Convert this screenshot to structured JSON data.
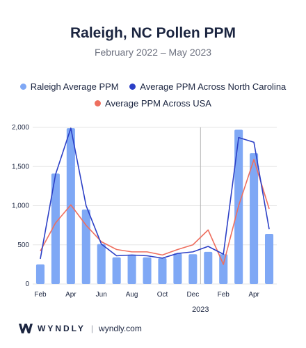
{
  "colors": {
    "bar": "#7fa8f5",
    "nc_line": "#2b3fc6",
    "usa_line": "#ee6f5f",
    "grid": "#e6e6e6",
    "divider": "#b5b5b5"
  },
  "footer": {
    "brand": "WYNDLY",
    "separator": "|",
    "site": "wyndly.com",
    "logo_icon": "wyndly-w-logo-icon"
  },
  "chart_data": {
    "type": "bar",
    "title": "Raleigh, NC Pollen PPM",
    "subtitle": "February 2022 – May 2023",
    "xlabel": "",
    "ylabel": "",
    "ylim": [
      0,
      2000
    ],
    "yticks": [
      0,
      500,
      1000,
      1500,
      2000
    ],
    "ytick_labels": [
      "0",
      "500",
      "1,000",
      "1,500",
      "2,000"
    ],
    "grid": true,
    "legend": "top",
    "categories": [
      "Feb 2022",
      "Mar 2022",
      "Apr 2022",
      "May 2022",
      "Jun 2022",
      "Jul 2022",
      "Aug 2022",
      "Sep 2022",
      "Oct 2022",
      "Nov 2022",
      "Dec 2022",
      "Jan 2023",
      "Feb 2023",
      "Mar 2023",
      "Apr 2023",
      "May 2023"
    ],
    "xtick_labels": [
      {
        "index": 0,
        "label": "Feb"
      },
      {
        "index": 2,
        "label": "Apr"
      },
      {
        "index": 4,
        "label": "Jun"
      },
      {
        "index": 6,
        "label": "Aug"
      },
      {
        "index": 8,
        "label": "Oct"
      },
      {
        "index": 10,
        "label": "Dec"
      },
      {
        "index": 12,
        "label": "Feb"
      },
      {
        "index": 14,
        "label": "Apr"
      }
    ],
    "year_marker": {
      "label": "2023",
      "between": [
        10,
        11
      ]
    },
    "series": [
      {
        "name": "Raleigh Average PPM",
        "kind": "bar",
        "values": [
          250,
          1410,
          1990,
          950,
          510,
          340,
          370,
          340,
          330,
          390,
          380,
          410,
          380,
          1970,
          1670,
          640
        ]
      },
      {
        "name": "Average PPM Across North Carolina",
        "kind": "line",
        "values": [
          320,
          1400,
          1990,
          1000,
          510,
          360,
          370,
          360,
          330,
          390,
          410,
          480,
          380,
          1870,
          1810,
          700
        ]
      },
      {
        "name": "Average PPM Across USA",
        "kind": "line",
        "values": [
          420,
          780,
          1010,
          750,
          540,
          440,
          410,
          410,
          370,
          440,
          500,
          690,
          250,
          1000,
          1590,
          960
        ]
      }
    ]
  }
}
